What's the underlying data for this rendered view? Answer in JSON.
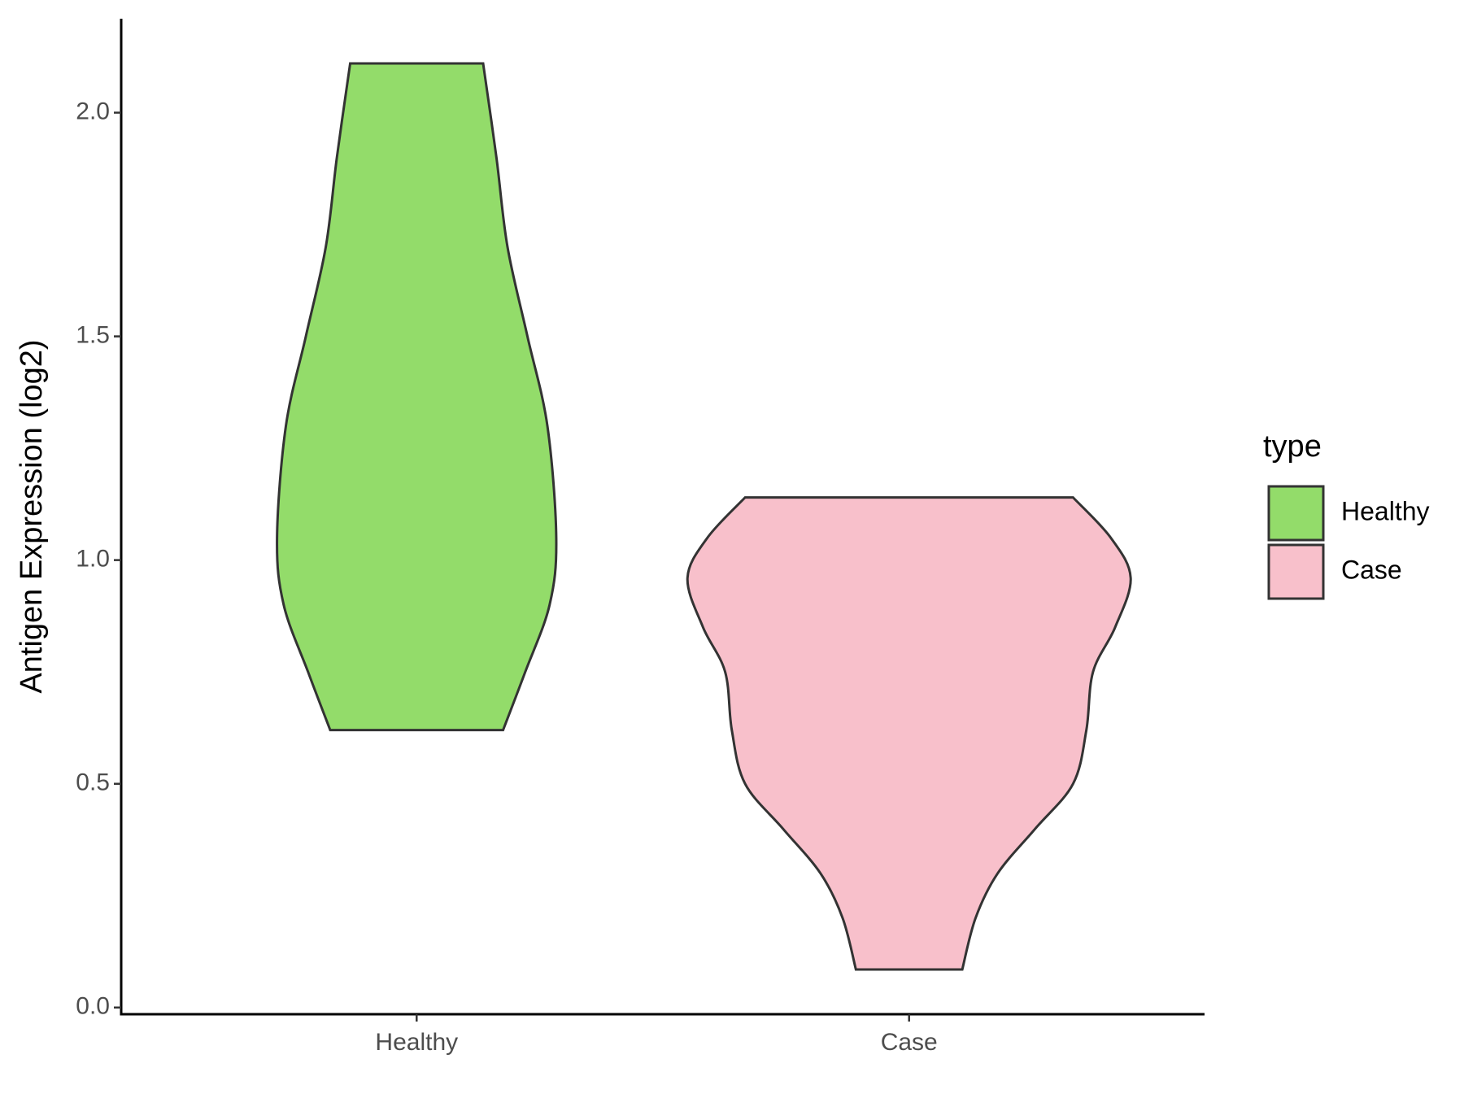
{
  "chart_data": {
    "type": "violin",
    "y_label": "Antigen Expression (log2)",
    "categories": [
      "Healthy",
      "Case"
    ],
    "legend_title": "type",
    "legend_position": "right",
    "series": [
      {
        "name": "Healthy",
        "color": "#93dc6a",
        "y": [
          0.62,
          0.75,
          0.9,
          1.05,
          1.3,
          1.5,
          1.7,
          1.9,
          2.11
        ],
        "density": [
          0.39,
          0.49,
          0.6,
          0.63,
          0.59,
          0.5,
          0.41,
          0.36,
          0.3
        ]
      },
      {
        "name": "Case",
        "color": "#f8c0cb",
        "y": [
          0.085,
          0.2,
          0.3,
          0.4,
          0.5,
          0.62,
          0.75,
          0.85,
          0.96,
          1.05,
          1.14
        ],
        "density": [
          0.24,
          0.3,
          0.4,
          0.57,
          0.74,
          0.8,
          0.83,
          0.93,
          1.0,
          0.91,
          0.74
        ]
      }
    ],
    "ylim": [
      -0.015,
      2.21
    ],
    "yticks": [
      {
        "value": 0,
        "label": "0.0"
      },
      0.5,
      {
        "value": 1,
        "label": "1.0"
      },
      1.5,
      {
        "value": 2,
        "label": "2.0"
      }
    ],
    "grid": false
  }
}
